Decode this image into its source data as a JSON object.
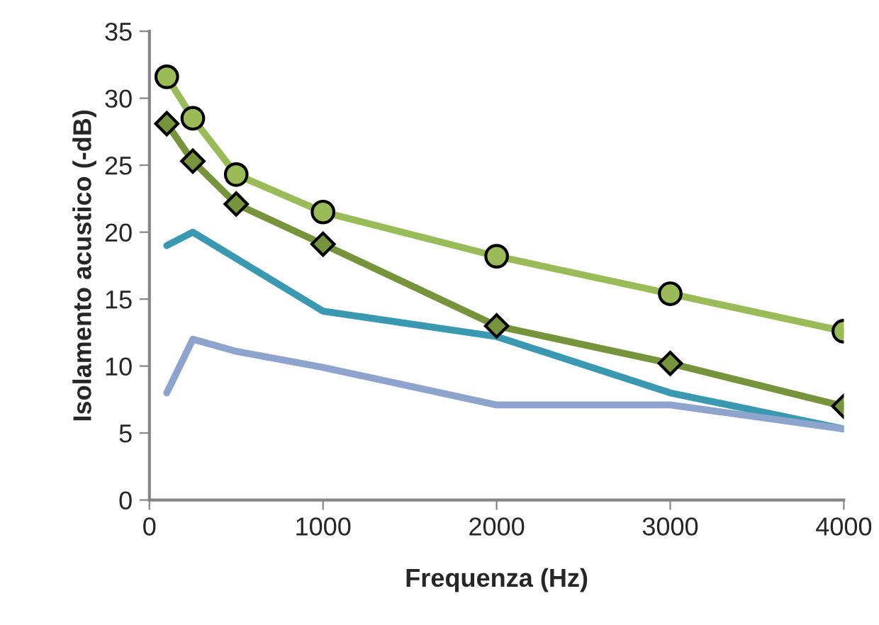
{
  "chart_data": {
    "type": "line",
    "xlabel": "Frequenza (Hz)",
    "ylabel": "Isolamento acustico (-dB)",
    "xlim": [
      0,
      4000
    ],
    "xticks": [
      0,
      1000,
      2000,
      3000,
      4000
    ],
    "ylim": [
      0,
      35
    ],
    "yticks": [
      0,
      5,
      10,
      15,
      20,
      25,
      30,
      35
    ],
    "grid": false,
    "legend": false,
    "series": [
      {
        "color": "#9bbb59",
        "marker": "circle",
        "x": [
          100,
          250,
          500,
          1000,
          2000,
          3000,
          4000
        ],
        "values": [
          31.6,
          28.5,
          24.3,
          21.5,
          18.2,
          15.4,
          12.6
        ]
      },
      {
        "color": "#77933c",
        "marker": "diamond",
        "x": [
          100,
          250,
          500,
          1000,
          2000,
          3000,
          4000
        ],
        "values": [
          28.1,
          25.3,
          22.1,
          19.1,
          13.0,
          10.2,
          7.0
        ]
      },
      {
        "color": "#3a99b0",
        "marker": "none",
        "x": [
          100,
          250,
          1000,
          2000,
          3000,
          4000
        ],
        "values": [
          19.0,
          20.0,
          14.1,
          12.2,
          8.0,
          5.3
        ]
      },
      {
        "color": "#8ea4cc",
        "marker": "none",
        "x": [
          100,
          250,
          500,
          1000,
          2000,
          3000,
          4000
        ],
        "values": [
          8.0,
          12.0,
          11.1,
          9.9,
          7.1,
          7.1,
          5.3
        ]
      }
    ]
  }
}
